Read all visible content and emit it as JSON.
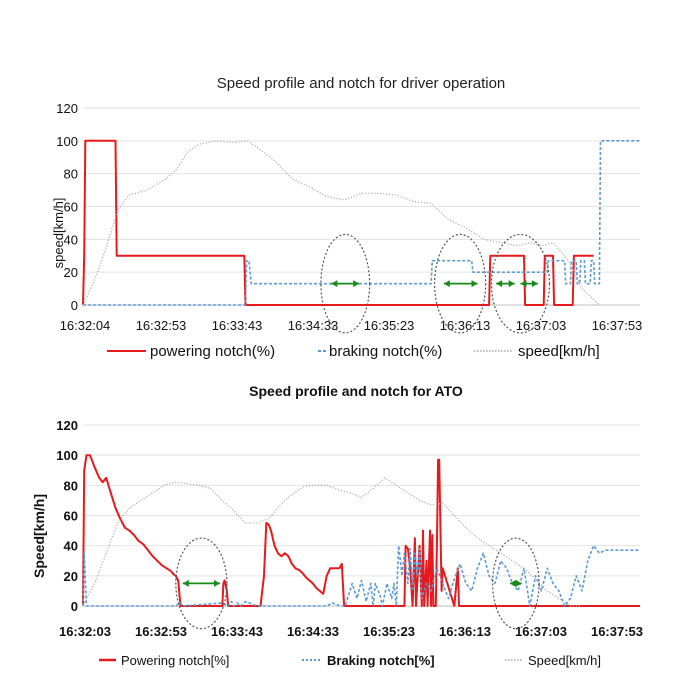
{
  "chart_data": [
    {
      "type": "line",
      "title": "Speed profile and notch for driver operation",
      "ylabel": "speed[km/h]",
      "xlabel": "",
      "ylim": [
        0,
        120
      ],
      "yticks": [
        "0",
        "20",
        "40",
        "60",
        "80",
        "100",
        "120"
      ],
      "xticks": [
        "16:32:04",
        "16:32:53",
        "16:33:43",
        "16:34:33",
        "16:35:23",
        "16:36:13",
        "16:37:03",
        "16:37:53"
      ],
      "grid": true,
      "legend_position": "bottom",
      "colors": {
        "powering": "#e8191c",
        "braking": "#5b9bd5",
        "speed": "#b0b0b0",
        "arrow": "#1a8a1a",
        "ellipse": "#555555"
      },
      "series": [
        {
          "name": "powering notch(%)",
          "style": "solid",
          "x": [
            0,
            1,
            2,
            28,
            29,
            139,
            140,
            350,
            351,
            380,
            381,
            397,
            398,
            405,
            406,
            422,
            423,
            440
          ],
          "values": [
            0,
            30,
            100,
            100,
            30,
            30,
            0,
            0,
            30,
            30,
            0,
            0,
            30,
            30,
            0,
            0,
            30,
            30
          ]
        },
        {
          "name": "braking notch(%)",
          "style": "dashed",
          "x": [
            0,
            140,
            141,
            143,
            145,
            300,
            301,
            335,
            336,
            400,
            401,
            415,
            416,
            420,
            421,
            425,
            426,
            428,
            429,
            432,
            433,
            437,
            438,
            440,
            441,
            445,
            446,
            460,
            461,
            480
          ],
          "values": [
            0,
            0,
            27,
            27,
            13,
            13,
            27,
            27,
            20,
            20,
            27,
            27,
            13,
            13,
            27,
            27,
            13,
            13,
            27,
            27,
            13,
            13,
            27,
            27,
            13,
            13,
            100,
            100,
            100,
            100
          ]
        },
        {
          "name": "speed[km/h]",
          "style": "dotted",
          "x": [
            0,
            10,
            20,
            30,
            40,
            55,
            70,
            80,
            90,
            100,
            115,
            130,
            142,
            150,
            165,
            180,
            195,
            210,
            225,
            240,
            255,
            270,
            285,
            300,
            315,
            330,
            345,
            360,
            375,
            385,
            395,
            405,
            415,
            420,
            430,
            445
          ],
          "values": [
            0,
            15,
            35,
            58,
            67,
            70,
            76,
            82,
            93,
            98,
            100,
            99,
            100,
            96,
            88,
            77,
            72,
            66,
            64,
            68,
            68,
            67,
            63,
            62,
            52,
            47,
            40,
            38,
            36,
            38,
            36,
            38,
            30,
            25,
            10,
            0
          ]
        }
      ],
      "annotations": [
        {
          "type": "arrow",
          "x": [
            214,
            238
          ],
          "y": 13
        },
        {
          "type": "arrow",
          "x": [
            311,
            340
          ],
          "y": 13
        },
        {
          "type": "arrow",
          "x": [
            356,
            372
          ],
          "y": 13
        },
        {
          "type": "arrow",
          "x": [
            377,
            392
          ],
          "y": 13
        },
        {
          "type": "ellipse",
          "cx": 226,
          "cy": 13,
          "rx": 21,
          "ry": 30
        },
        {
          "type": "ellipse",
          "cx": 325,
          "cy": 13,
          "rx": 22,
          "ry": 30
        },
        {
          "type": "ellipse",
          "cx": 377,
          "cy": 13,
          "rx": 25,
          "ry": 30
        }
      ]
    },
    {
      "type": "line",
      "title": "Speed profile and notch for ATO",
      "ylabel": "Speed[km/h]",
      "xlabel": "",
      "ylim": [
        0,
        120
      ],
      "yticks": [
        "0",
        "20",
        "40",
        "60",
        "80",
        "100",
        "120"
      ],
      "xticks": [
        "16:32:03",
        "16:32:53",
        "16:33:43",
        "16:34:33",
        "16:35:23",
        "16:36:13",
        "16:37:03",
        "16:37:53"
      ],
      "grid": true,
      "legend_position": "bottom",
      "colors": {
        "powering": "#e8191c",
        "braking": "#5b9bd5",
        "speed": "#b0b0b0",
        "arrow": "#1a8a1a",
        "ellipse": "#555555"
      },
      "series": [
        {
          "name": "Powering notch[%]",
          "style": "solid",
          "x": [
            0,
            1,
            3,
            6,
            10,
            14,
            17,
            20,
            24,
            28,
            32,
            36,
            40,
            44,
            48,
            52,
            56,
            60,
            64,
            68,
            72,
            76,
            78,
            80,
            82,
            84,
            120,
            121,
            122,
            124,
            125,
            127,
            130,
            131,
            153,
            156,
            158,
            160,
            162,
            165,
            168,
            171,
            174,
            177,
            180,
            183,
            186,
            189,
            192,
            195,
            198,
            201,
            204,
            207,
            210,
            213,
            214,
            221,
            223,
            224,
            225,
            226,
            277,
            278,
            280,
            282,
            284,
            286,
            287,
            290,
            292,
            293,
            294,
            296,
            297,
            299,
            300,
            301,
            302,
            304,
            305,
            306,
            307,
            309,
            310,
            320,
            323,
            324,
            326,
            328,
            330,
            331,
            332,
            410,
            412,
            414,
            416,
            419,
            422,
            424,
            428,
            431,
            434,
            437,
            440,
            443,
            444,
            446,
            447,
            448,
            450,
            452,
            455,
            460,
            465,
            470,
            480
          ],
          "values": [
            0,
            90,
            100,
            100,
            92,
            85,
            82,
            85,
            75,
            65,
            58,
            52,
            50,
            47,
            43,
            41,
            37,
            33,
            30,
            27,
            25,
            23,
            21,
            20,
            17,
            0,
            0,
            15,
            17,
            10,
            0,
            0,
            0,
            0,
            0,
            20,
            55,
            54,
            50,
            40,
            35,
            33,
            35,
            33,
            28,
            25,
            24,
            22,
            19,
            17,
            15,
            12,
            10,
            8,
            20,
            25,
            25,
            25,
            28,
            15,
            0,
            0,
            0,
            40,
            38,
            25,
            0,
            45,
            0,
            40,
            0,
            50,
            0,
            30,
            0,
            50,
            0,
            47,
            0,
            0,
            40,
            97,
            97,
            10,
            25,
            0,
            25,
            0,
            0,
            0,
            0,
            0,
            0,
            0,
            0,
            0,
            0,
            0,
            0,
            0,
            0,
            0,
            0,
            0,
            0,
            0,
            0,
            0,
            0,
            0,
            0,
            0,
            0,
            0,
            0,
            0,
            0
          ]
        },
        {
          "name": "Braking notch[%]",
          "style": "dashed",
          "x": [
            0,
            1,
            3,
            30,
            80,
            84,
            86,
            120,
            125,
            128,
            130,
            133,
            136,
            140,
            150,
            155,
            200,
            210,
            215,
            222,
            226,
            232,
            236,
            240,
            244,
            248,
            250,
            252,
            256,
            258,
            262,
            266,
            268,
            270,
            272,
            275,
            277,
            280,
            282,
            284,
            286,
            288,
            290,
            292,
            296,
            300,
            305,
            310,
            315,
            320,
            325,
            330,
            335,
            340,
            345,
            350,
            355,
            360,
            365,
            370,
            375,
            380,
            385,
            390,
            395,
            400,
            405,
            410,
            415,
            420,
            425,
            430,
            435,
            440,
            445,
            450,
            455,
            460,
            465,
            470,
            480
          ],
          "values": [
            0,
            35,
            0,
            0,
            0,
            2,
            0,
            2,
            0,
            3,
            0,
            2,
            0,
            3,
            0,
            0,
            0,
            0,
            2,
            0,
            0,
            15,
            5,
            17,
            3,
            15,
            0,
            15,
            7,
            0,
            15,
            5,
            15,
            0,
            40,
            20,
            35,
            15,
            38,
            10,
            35,
            20,
            38,
            5,
            15,
            10,
            25,
            15,
            5,
            18,
            28,
            15,
            10,
            25,
            35,
            20,
            15,
            30,
            25,
            15,
            10,
            25,
            0,
            20,
            10,
            25,
            15,
            10,
            0,
            5,
            20,
            10,
            30,
            40,
            35,
            37,
            37,
            37,
            37,
            37,
            37
          ]
        },
        {
          "name": "Speed[km/h]",
          "style": "dotted",
          "x": [
            0,
            10,
            20,
            30,
            40,
            50,
            60,
            70,
            80,
            90,
            100,
            110,
            120,
            130,
            140,
            150,
            160,
            170,
            180,
            190,
            200,
            210,
            220,
            230,
            240,
            250,
            260,
            270,
            280,
            290,
            300,
            310,
            320,
            330,
            340,
            350,
            360,
            370,
            380,
            390,
            400,
            410,
            420,
            430
          ],
          "values": [
            0,
            15,
            35,
            55,
            65,
            70,
            75,
            80,
            82,
            81,
            80,
            78,
            70,
            63,
            55,
            55,
            58,
            67,
            74,
            79,
            80,
            80,
            77,
            75,
            72,
            78,
            85,
            80,
            75,
            70,
            67,
            68,
            60,
            52,
            45,
            40,
            35,
            30,
            25,
            18,
            10,
            5,
            0,
            0
          ]
        }
      ],
      "annotations": [
        {
          "type": "arrow",
          "x": [
            86,
            118
          ],
          "y": 15
        },
        {
          "type": "arrow",
          "x": [
            368,
            378
          ],
          "y": 15
        },
        {
          "type": "ellipse",
          "cx": 102,
          "cy": 15,
          "rx": 22,
          "ry": 30
        },
        {
          "type": "ellipse",
          "cx": 373,
          "cy": 15,
          "rx": 20,
          "ry": 30
        }
      ]
    }
  ]
}
